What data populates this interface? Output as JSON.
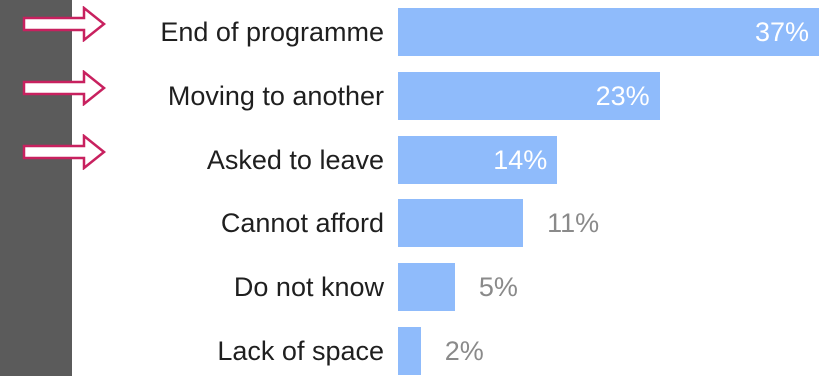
{
  "colors": {
    "bar": "#8fbbfb",
    "sidebar": "#5b5b5b",
    "arrow": "#c8215f",
    "value_text": "#8a8a8a",
    "value_text_inside": "#ffffff"
  },
  "icons": {
    "marker": "right-arrow-outline-icon"
  },
  "highlighted_categories": [
    "End of programme",
    "Moving to another",
    "Asked to leave"
  ],
  "chart_data": {
    "type": "bar",
    "orientation": "horizontal",
    "categories": [
      "End of programme",
      "Moving to another",
      "Asked to leave",
      "Cannot afford",
      "Do not know",
      "Lack of space"
    ],
    "values": [
      37,
      23,
      14,
      11,
      5,
      2
    ],
    "value_labels": [
      "37%",
      "23%",
      "14%",
      "11%",
      "5%",
      "2%"
    ],
    "unit": "%",
    "xlim": [
      0,
      37
    ],
    "grid": false,
    "legend": "none"
  }
}
